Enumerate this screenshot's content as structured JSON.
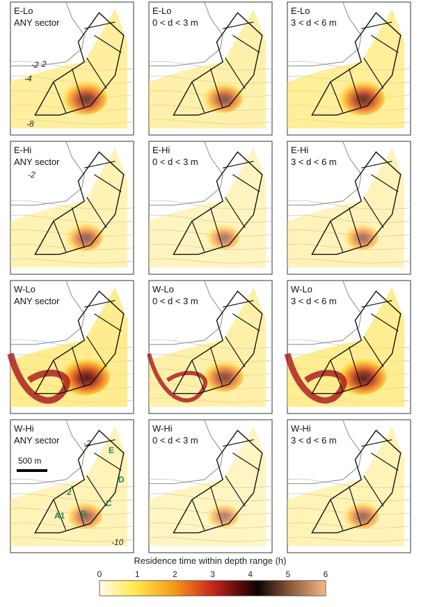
{
  "rows": [
    {
      "label": "E-Lo",
      "panels": [
        "ANY sector",
        "0 < d < 3 m",
        "3 < d < 6 m"
      ]
    },
    {
      "label": "E-Hi",
      "panels": [
        "ANY sector",
        "0 < d < 3 m",
        "3 < d < 6 m"
      ]
    },
    {
      "label": "W-Lo",
      "panels": [
        "ANY sector",
        "0 < d < 3 m",
        "3 < d < 6 m"
      ]
    },
    {
      "label": "W-Hi",
      "panels": [
        "ANY sector",
        "0 < d < 3 m",
        "3 < d < 6 m"
      ]
    }
  ],
  "intensity": [
    [
      0.75,
      0.55,
      0.8
    ],
    [
      0.45,
      0.3,
      0.35
    ],
    [
      0.95,
      0.6,
      0.9
    ],
    [
      0.4,
      0.25,
      0.4
    ]
  ],
  "depth_labels": [
    "-2",
    "-4",
    "-8",
    "-10",
    "2",
    "-2",
    "-2"
  ],
  "sector_labels": [
    "A1",
    "B",
    "C",
    "D",
    "E",
    "2"
  ],
  "scale_bar": "500 m",
  "colorbar": {
    "title": "Residence time within depth range (h)",
    "ticks": [
      "0",
      "1",
      "2",
      "3",
      "4",
      "5",
      "6"
    ],
    "colors": [
      "#fffce8",
      "#ffe84a",
      "#f59a1a",
      "#c8261c",
      "#5a0c0c",
      "#0b0504",
      "#7a4a32",
      "#f6b884"
    ]
  }
}
